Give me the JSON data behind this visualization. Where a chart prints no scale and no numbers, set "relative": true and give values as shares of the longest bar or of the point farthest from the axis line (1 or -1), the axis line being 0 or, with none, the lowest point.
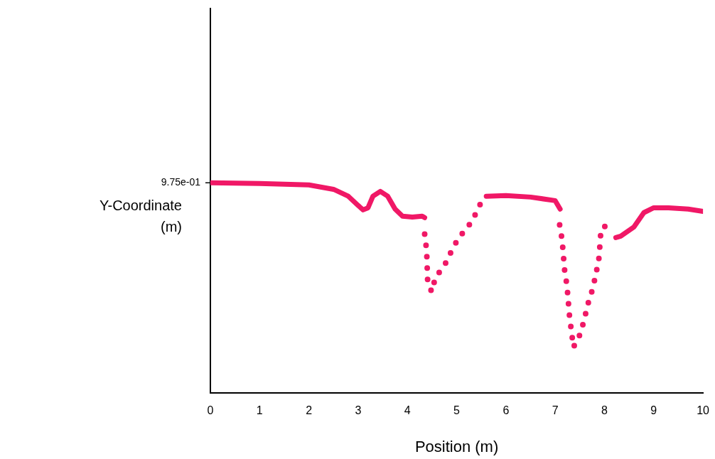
{
  "chart_data": {
    "type": "line",
    "relative": true,
    "xlabel": "Position (m)",
    "ylabel": "Y-Coordinate (m)",
    "xlim": [
      0,
      10
    ],
    "xticks": [
      0,
      1,
      2,
      3,
      4,
      5,
      6,
      7,
      8,
      9,
      10
    ],
    "tick_labels": "x",
    "grid": false,
    "legend": false,
    "marker": "none",
    "annotations": [
      {
        "text": "9.75e-01",
        "x": 0,
        "y": 1
      }
    ],
    "series": [
      {
        "color": "#f01866",
        "line_style": "solid",
        "x": [
          0,
          1,
          2,
          2.5,
          2.8,
          3.0,
          3.1,
          3.2,
          3.3,
          3.45,
          3.6,
          3.75,
          3.9,
          4.1,
          4.3,
          4.35
        ],
        "values": [
          1.0,
          0.997,
          0.99,
          0.969,
          0.936,
          0.892,
          0.871,
          0.881,
          0.936,
          0.959,
          0.936,
          0.875,
          0.841,
          0.837,
          0.841,
          0.834
        ]
      },
      {
        "color": "#f01866",
        "line_style": "dotted",
        "x": [
          4.35,
          4.39,
          4.41,
          4.49,
          4.57,
          4.76,
          4.9,
          5.04,
          5.23,
          5.4,
          5.53
        ],
        "values": [
          0.756,
          0.678,
          0.536,
          0.481,
          0.549,
          0.61,
          0.678,
          0.739,
          0.79,
          0.858,
          0.925
        ]
      },
      {
        "color": "#f01866",
        "line_style": "solid",
        "x": [
          5.6,
          6,
          6.5,
          7.0,
          7.1
        ],
        "values": [
          0.936,
          0.939,
          0.932,
          0.915,
          0.875
        ]
      },
      {
        "color": "#f01866",
        "line_style": "dotted",
        "x": [
          7.09,
          7.14,
          7.19,
          7.24,
          7.29,
          7.37,
          7.51,
          7.59,
          7.66,
          7.76,
          7.83,
          7.89,
          7.93,
          8.1
        ],
        "values": [
          0.8,
          0.729,
          0.586,
          0.508,
          0.366,
          0.217,
          0.281,
          0.349,
          0.42,
          0.495,
          0.569,
          0.644,
          0.78,
          0.807
        ]
      },
      {
        "color": "#f01866",
        "line_style": "solid",
        "x": [
          8.23,
          8.33,
          8.6,
          8.8,
          9.0,
          9.3,
          9.7,
          10
        ],
        "values": [
          0.739,
          0.746,
          0.79,
          0.858,
          0.881,
          0.881,
          0.875,
          0.864
        ]
      }
    ]
  }
}
